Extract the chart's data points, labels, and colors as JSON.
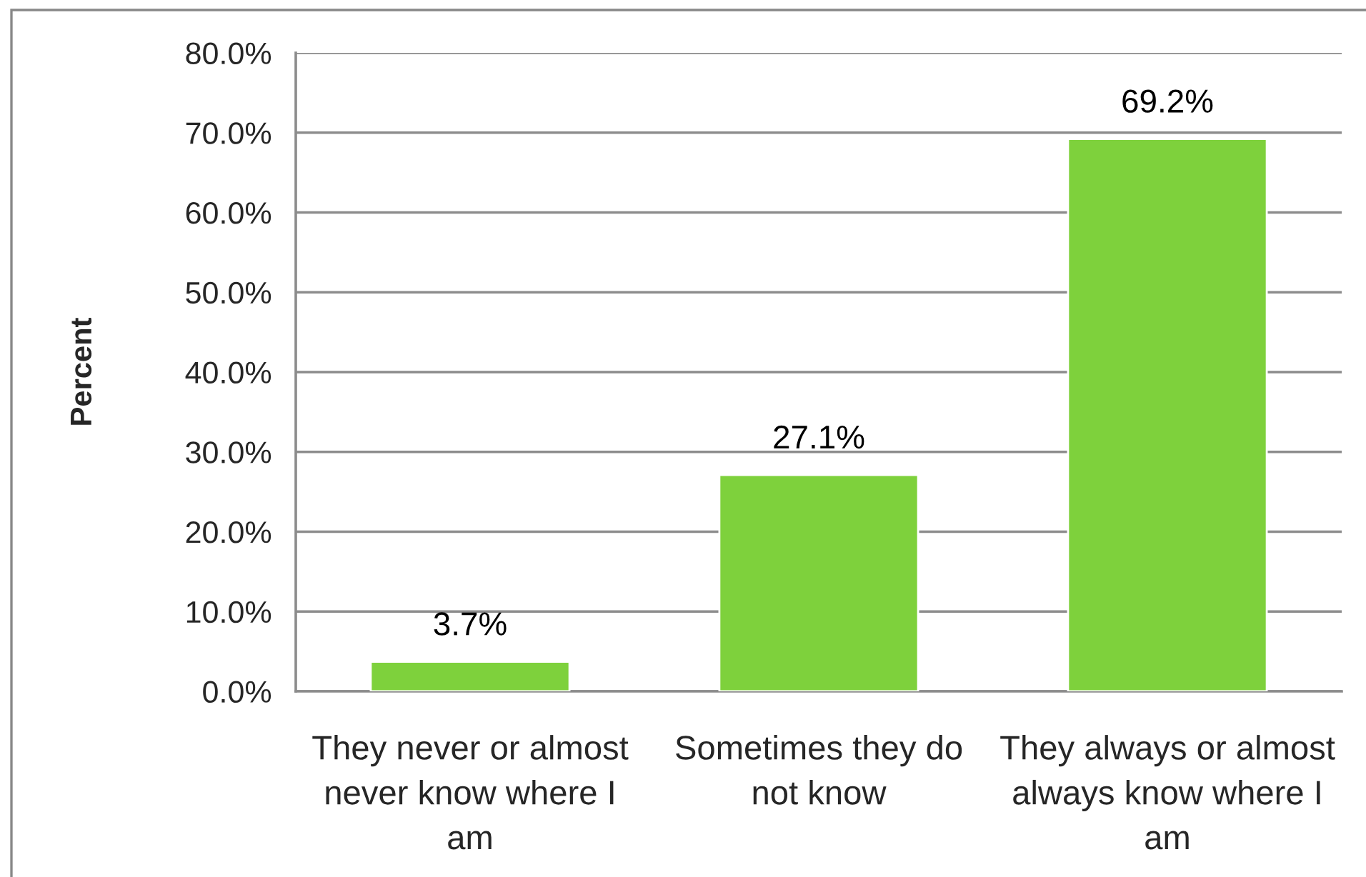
{
  "chart_data": {
    "type": "bar",
    "ylabel": "Percent",
    "categories": [
      "They never or almost\nnever know where I\nam",
      "Sometimes they do\nnot know",
      "They always or almost\nalways know where I\nam"
    ],
    "values": [
      3.7,
      27.1,
      69.2
    ],
    "color": "#7ed13c",
    "value_labels": [
      "3.7%",
      "27.1%",
      "69.2%"
    ],
    "ylim": [
      0,
      80
    ],
    "yticks": [
      {
        "value": 0,
        "label": "0.0%"
      },
      {
        "value": 10,
        "label": "10.0%"
      },
      {
        "value": 20,
        "label": "20.0%"
      },
      {
        "value": 30,
        "label": "30.0%"
      },
      {
        "value": 40,
        "label": "40.0%"
      },
      {
        "value": 50,
        "label": "50.0%"
      },
      {
        "value": 60,
        "label": "60.0%"
      },
      {
        "value": 70,
        "label": "70.0%"
      },
      {
        "value": 80,
        "label": "80.0%"
      }
    ],
    "grid": "y"
  }
}
